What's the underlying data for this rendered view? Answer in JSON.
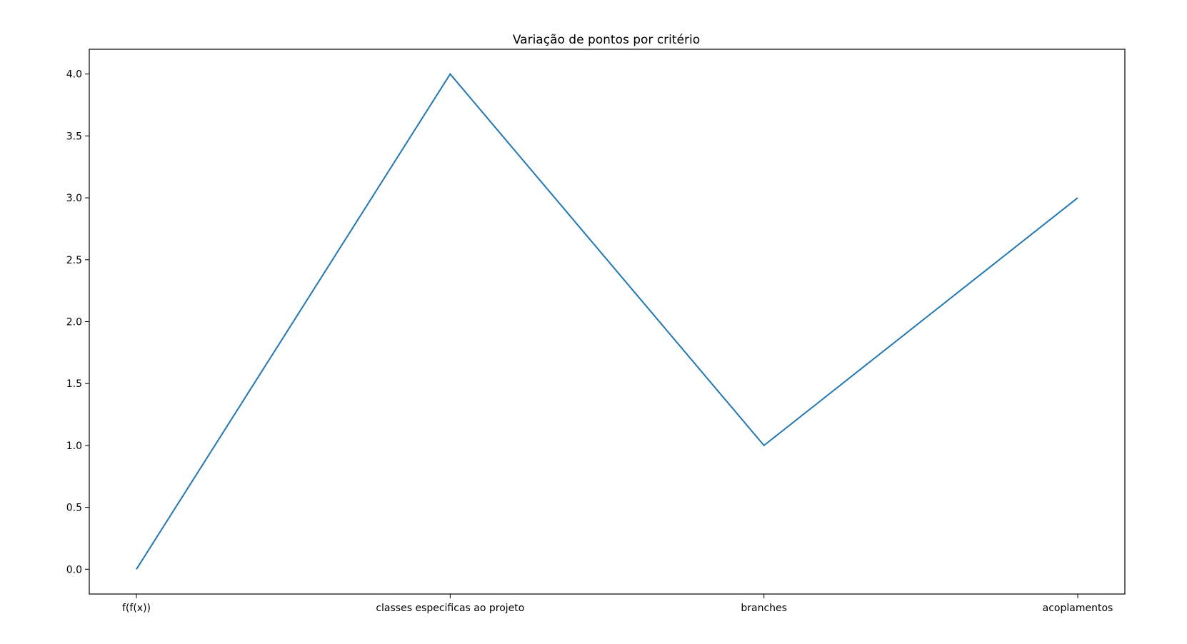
{
  "chart_data": {
    "type": "line",
    "title": "Variação de pontos por critério",
    "xlabel": "",
    "ylabel": "",
    "categories": [
      "f(f(x))",
      "classes especificas ao projeto",
      "branches",
      "acoplamentos"
    ],
    "series": [
      {
        "values": [
          0,
          4,
          1,
          3
        ],
        "color": "#1f77b4"
      }
    ],
    "ylim": [
      -0.2,
      4.2
    ],
    "yticks": [
      0.0,
      0.5,
      1.0,
      1.5,
      2.0,
      2.5,
      3.0,
      3.5,
      4.0
    ],
    "ytick_labels": [
      "0.0",
      "0.5",
      "1.0",
      "1.5",
      "2.0",
      "2.5",
      "3.0",
      "3.5",
      "4.0"
    ],
    "grid": false,
    "legend": "none"
  }
}
